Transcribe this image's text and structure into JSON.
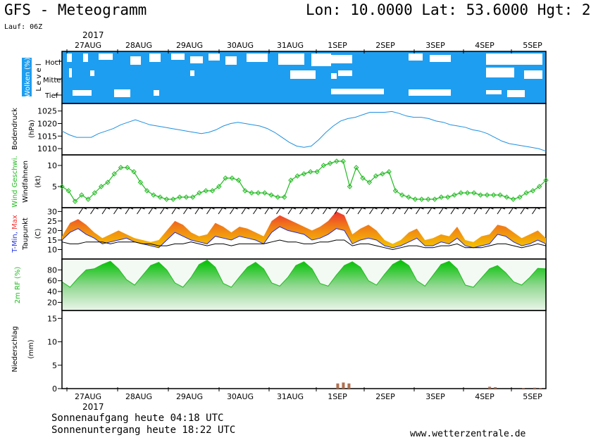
{
  "header": {
    "title_left": "GFS - Meteogramm",
    "title_right": "Lon: 10.0000 Lat: 53.6000 Hgt: 2",
    "run": "Lauf: 06Z"
  },
  "footer": {
    "sunrise": "Sonnenaufgang heute 04:18 UTC",
    "sunset": "Sonnenuntergang heute 18:22 UTC",
    "source": "www.wetterzentrale.de"
  },
  "chart_data": {
    "type": "line",
    "year": "2017",
    "dates": [
      "27AUG",
      "28AUG",
      "29AUG",
      "30AUG",
      "31AUG",
      "1SEP",
      "2SEP",
      "3SEP",
      "4SEP",
      "5SEP"
    ],
    "colors": {
      "cloud": "#1e9ef0",
      "pressure": "#1e90e0",
      "wind": "#22bb22",
      "dewpoint": "#000000",
      "humidity": "#22bb22",
      "precip": "#b07050"
    },
    "panels": [
      {
        "id": "clouds",
        "ylabel": "Wolken (%)",
        "ylabel2": "L e v e l",
        "levels": [
          "Hoch",
          "Mittel",
          "Tief"
        ]
      },
      {
        "id": "pressure",
        "ylabel": "Bodendruck",
        "unit": "(hPa)",
        "ylim": [
          1007.5,
          1028
        ],
        "ticks": [
          "1010",
          "1015",
          "1020",
          "1025"
        ],
        "series": [
          {
            "values": [
              1017,
              1015.5,
              1014.5,
              1014.5,
              1014.5,
              1016,
              1017,
              1018,
              1019.5,
              1020.5,
              1021.5,
              1020.5,
              1019.5,
              1019,
              1018.5,
              1018,
              1017.5,
              1017,
              1016.5,
              1016,
              1016.5,
              1017.5,
              1019,
              1020,
              1020.5,
              1020,
              1019.5,
              1019,
              1018,
              1016.5,
              1014.5,
              1012.5,
              1011,
              1010.5,
              1011,
              1013.5,
              1016.5,
              1019,
              1021,
              1022,
              1022.5,
              1023.5,
              1024.5,
              1024.5,
              1024.5,
              1024.8,
              1024,
              1023,
              1022.5,
              1022.5,
              1022,
              1021,
              1020.5,
              1019.5,
              1019,
              1018.5,
              1017.5,
              1017,
              1016,
              1014.5,
              1013,
              1012,
              1011.5,
              1011,
              1010.5,
              1010,
              1009
            ]
          }
        ]
      },
      {
        "id": "wind",
        "ylabel": "Wind Geschwi.",
        "ylabel2": "Windfahnen",
        "unit": "(kt)",
        "ylim": [
          0,
          12.5
        ],
        "ticks": [
          "5",
          "10"
        ],
        "series": [
          {
            "values": [
              5,
              4,
              1.5,
              3,
              2,
              3.5,
              5,
              6,
              8,
              9.5,
              9.5,
              8.5,
              6,
              4,
              3,
              2.5,
              2,
              2,
              2.5,
              2.5,
              2.5,
              3.5,
              4,
              4,
              5,
              7,
              7,
              6.5,
              4,
              3.5,
              3.5,
              3.5,
              3,
              2.5,
              2.5,
              6.5,
              7.5,
              8,
              8.5,
              8.5,
              10,
              10.5,
              11,
              11,
              5,
              9.5,
              7,
              6,
              7.5,
              8,
              8.5,
              4,
              3,
              2.5,
              2,
              2,
              2,
              2,
              2.5,
              2.5,
              3,
              3.5,
              3.5,
              3.5,
              3,
              3,
              3,
              3,
              2.5,
              2,
              2.5,
              3.5,
              4,
              5,
              6.5
            ]
          }
        ]
      },
      {
        "id": "temperature",
        "ylabel": "T-Min, Max",
        "ylabel2": "Taupunkt",
        "unit": "(C)",
        "ylim": [
          5,
          32
        ],
        "ticks": [
          "10",
          "15",
          "20",
          "25",
          "30"
        ],
        "series": [
          {
            "name": "T-Min",
            "values": [
              15,
              19,
              21,
              18,
              16,
              13,
              14,
              15,
              16,
              14,
              13,
              12,
              11,
              15,
              19,
              17,
              15,
              14,
              13,
              17,
              16,
              15,
              17,
              16,
              15,
              13,
              19,
              22,
              20,
              19,
              18,
              15,
              16,
              18,
              21,
              20,
              13,
              15,
              16,
              15,
              12,
              11,
              12,
              14,
              16,
              12,
              12,
              14,
              13,
              16,
              12,
              11,
              12,
              13,
              18,
              17,
              14,
              12,
              13,
              15,
              13
            ]
          },
          {
            "name": "Max",
            "values": [
              17,
              24,
              26,
              23,
              19,
              16,
              18,
              20,
              18,
              16,
              15,
              14,
              15,
              20,
              25,
              23,
              19,
              17,
              18,
              24,
              22,
              19,
              22,
              21,
              19,
              17,
              25,
              28,
              26,
              24,
              22,
              20,
              22,
              25,
              30,
              28,
              18,
              21,
              23,
              20,
              15,
              13,
              15,
              19,
              21,
              15,
              16,
              18,
              17,
              22,
              15,
              14,
              17,
              18,
              23,
              22,
              19,
              16,
              18,
              20,
              16
            ]
          },
          {
            "name": "Taupunkt",
            "values": [
              14,
              13,
              13,
              14,
              14,
              14,
              13,
              14,
              14,
              14,
              13,
              13,
              12,
              12,
              13,
              13,
              14,
              13,
              12,
              13,
              13,
              12,
              13,
              13,
              13,
              13,
              14,
              15,
              14,
              14,
              13,
              13,
              14,
              14,
              15,
              15,
              12,
              13,
              13,
              12,
              11,
              10,
              11,
              12,
              12,
              11,
              11,
              12,
              12,
              13,
              11,
              11,
              11,
              12,
              13,
              13,
              12,
              11,
              12,
              13,
              12
            ]
          }
        ]
      },
      {
        "id": "humidity",
        "ylabel": "2m RF (%)",
        "ylim": [
          5,
          100
        ],
        "ticks": [
          "20",
          "40",
          "60",
          "80"
        ],
        "series": [
          {
            "values": [
              58,
              48,
              65,
              80,
              82,
              90,
              96,
              82,
              62,
              52,
              70,
              88,
              94,
              80,
              56,
              48,
              66,
              90,
              98,
              85,
              55,
              48,
              67,
              85,
              94,
              82,
              56,
              50,
              66,
              88,
              95,
              82,
              55,
              50,
              70,
              88,
              95,
              85,
              60,
              52,
              72,
              90,
              98,
              88,
              60,
              50,
              70,
              90,
              96,
              82,
              52,
              48,
              65,
              82,
              88,
              75,
              58,
              52,
              66,
              83,
              82
            ]
          }
        ]
      },
      {
        "id": "precip",
        "ylabel": "Niederschlag",
        "unit": "(mm)",
        "ylim": [
          0,
          16.7
        ],
        "ticks": [
          "0",
          "5",
          "10",
          "15"
        ],
        "series": [
          {
            "values": [
              0,
              0,
              0,
              0,
              0,
              0,
              0,
              0,
              0,
              0,
              0,
              0,
              0,
              0,
              0,
              0,
              0,
              0,
              0,
              0,
              0,
              0,
              0,
              0,
              0,
              0,
              0,
              0,
              0,
              0,
              0,
              0,
              0,
              0,
              0,
              0,
              0,
              0,
              0,
              0,
              0,
              0,
              0,
              0,
              0,
              0,
              0,
              0,
              0,
              1.1,
              1.3,
              1.1,
              0,
              0,
              0,
              0,
              0,
              0,
              0,
              0,
              0,
              0,
              0,
              0,
              0,
              0,
              0,
              0,
              0,
              0,
              0,
              0,
              0,
              0,
              0,
              0,
              0.4,
              0.3,
              0,
              0,
              0,
              0,
              0.1,
              0,
              0.2,
              0.1,
              0
            ]
          }
        ]
      }
    ]
  }
}
